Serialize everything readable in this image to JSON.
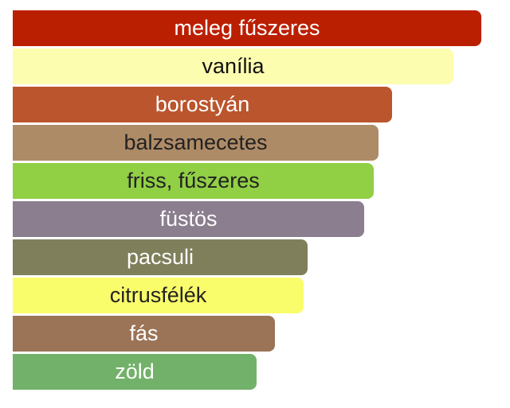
{
  "chart_data": {
    "type": "bar",
    "orientation": "horizontal",
    "title": "",
    "xlabel": "",
    "ylabel": "",
    "xlim": [
      0,
      100
    ],
    "grid": false,
    "legend": "none",
    "categories": [
      "meleg fűszeres",
      "vanília",
      "borostyán",
      "balzsamecetes",
      "friss, fűszeres",
      "füstös",
      "pacsuli",
      "citrusfélék",
      "fás",
      "zöld"
    ],
    "values": [
      100,
      94,
      81,
      78,
      77,
      75,
      63,
      62,
      56,
      52
    ],
    "colors": [
      "#bb1f02",
      "#fdfdaf",
      "#bb552d",
      "#ae8b67",
      "#91cf45",
      "#8b7e8e",
      "#7f7f5c",
      "#fafd6b",
      "#9b7457",
      "#72b169"
    ],
    "label_colors": [
      "#ffffff",
      "#111111",
      "#ffffff",
      "#222222",
      "#222222",
      "#ffffff",
      "#ffffff",
      "#222222",
      "#ffffff",
      "#ffffff"
    ]
  }
}
